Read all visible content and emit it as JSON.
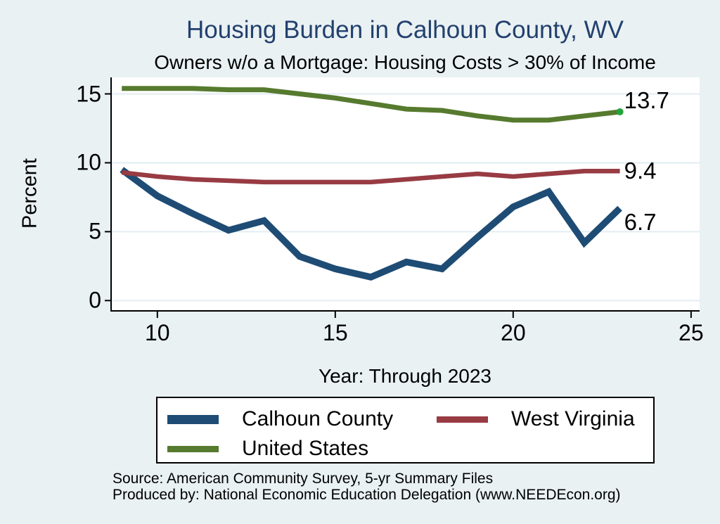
{
  "chart_data": {
    "type": "line",
    "title": "Housing Burden in Calhoun County, WV",
    "subtitle": "Owners w/o a Mortgage: Housing Costs > 30% of Income",
    "xlabel": "Year: Through 2023",
    "ylabel": "Percent",
    "x": [
      9,
      10,
      11,
      12,
      13,
      14,
      15,
      16,
      17,
      18,
      19,
      20,
      21,
      22,
      23
    ],
    "series": [
      {
        "name": "Calhoun County",
        "color": "#1e4c74",
        "values": [
          9.5,
          7.6,
          6.3,
          5.1,
          5.8,
          3.2,
          2.3,
          1.7,
          2.8,
          2.3,
          4.6,
          6.8,
          7.9,
          4.2,
          6.7
        ],
        "end_label": "6.7"
      },
      {
        "name": "West Virginia",
        "color": "#983b43",
        "values": [
          9.3,
          9.0,
          8.8,
          8.7,
          8.6,
          8.6,
          8.6,
          8.6,
          8.8,
          9.0,
          9.2,
          9.0,
          9.2,
          9.4,
          9.4
        ],
        "end_label": "9.4"
      },
      {
        "name": "United States",
        "color": "#567a2e",
        "values": [
          15.4,
          15.4,
          15.4,
          15.3,
          15.3,
          15.0,
          14.7,
          14.3,
          13.9,
          13.8,
          13.4,
          13.1,
          13.1,
          13.4,
          13.7
        ],
        "end_label": "13.7",
        "end_marker_color": "#23a339"
      }
    ],
    "xticks": [
      10,
      15,
      20,
      25
    ],
    "yticks": [
      0,
      5,
      10,
      15
    ],
    "xlim": [
      8.68,
      25.24
    ],
    "ylim": [
      -0.8,
      16.2
    ],
    "grid": "horizontal",
    "legend_position": "bottom"
  },
  "colors": {
    "background": "#e9f1f3",
    "plot_background": "#ffffff",
    "grid": "#e2edf3",
    "axis": "#000000",
    "title": "#23406e"
  },
  "footer": {
    "source": "Source: American Community Survey, 5-yr Summary Files",
    "produced_by": "Produced by: National Economic Education Delegation (www.NEEDEcon.org)"
  }
}
